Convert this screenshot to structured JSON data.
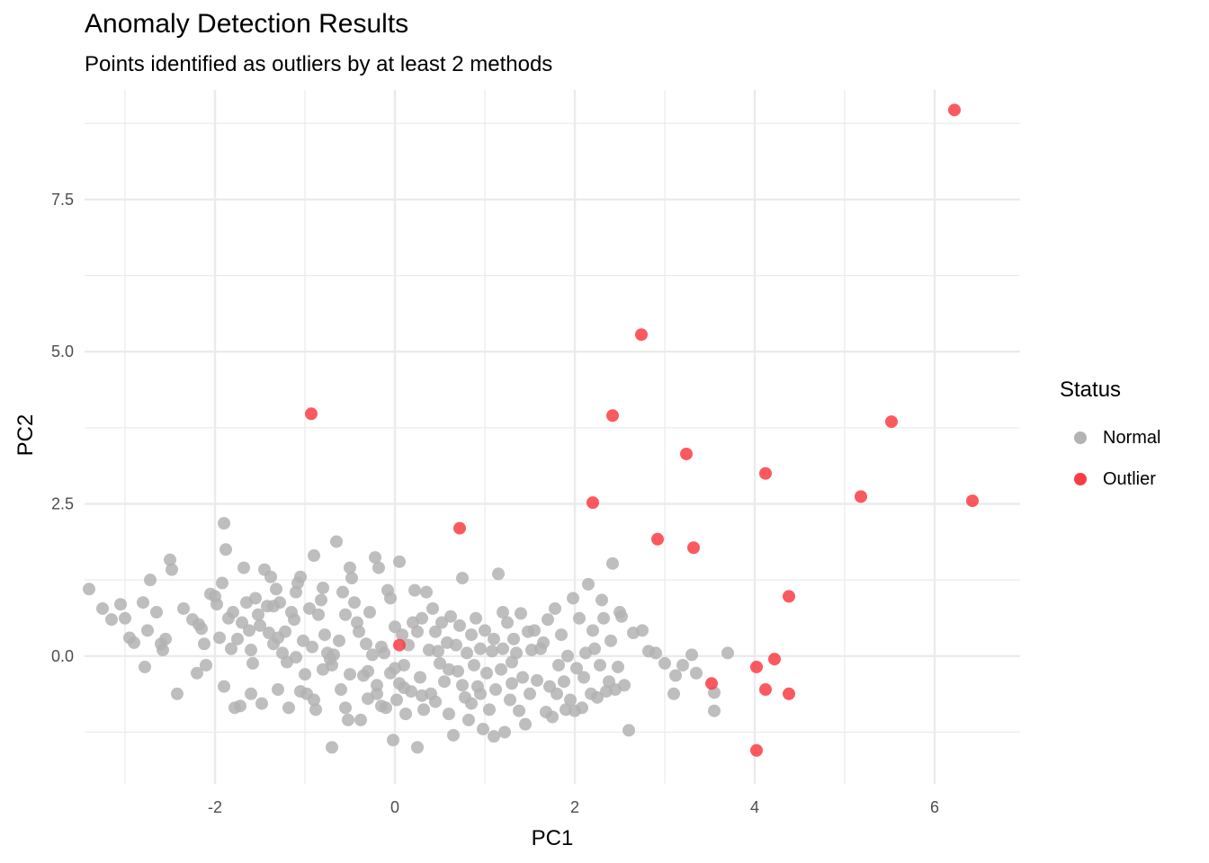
{
  "chart_data": {
    "type": "scatter",
    "title": "Anomaly Detection Results",
    "subtitle": "Points identified as outliers by at least 2 methods",
    "xlabel": "PC1",
    "ylabel": "PC2",
    "xlim": [
      -3.45,
      6.95
    ],
    "ylim": [
      -2.1,
      9.3
    ],
    "x_ticks": [
      -2,
      0,
      2,
      4,
      6
    ],
    "x_tick_labels": [
      "-2",
      "0",
      "2",
      "4",
      "6"
    ],
    "y_ticks": [
      0,
      2.5,
      5,
      7.5
    ],
    "y_tick_labels": [
      "0.0",
      "2.5",
      "5.0",
      "7.5"
    ],
    "grid": true,
    "legend_position": "right",
    "legend_title": "Status",
    "colors": {
      "Normal": "#b3b3b3",
      "Outlier": "#fa3c44",
      "grid": "#ebebeb"
    },
    "series": [
      {
        "name": "Normal",
        "color": "#b3b3b3",
        "points": [
          [
            -3.4,
            1.1
          ],
          [
            -3.25,
            0.78
          ],
          [
            -3.15,
            0.6
          ],
          [
            -3.05,
            0.85
          ],
          [
            -3.0,
            0.62
          ],
          [
            -2.95,
            0.3
          ],
          [
            -2.9,
            0.22
          ],
          [
            -2.8,
            0.88
          ],
          [
            -2.75,
            0.42
          ],
          [
            -2.78,
            -0.18
          ],
          [
            -2.72,
            1.25
          ],
          [
            -2.65,
            0.72
          ],
          [
            -2.6,
            0.2
          ],
          [
            -2.55,
            0.28
          ],
          [
            -2.58,
            0.1
          ],
          [
            -2.5,
            1.58
          ],
          [
            -2.48,
            1.42
          ],
          [
            -2.42,
            -0.62
          ],
          [
            -2.35,
            0.78
          ],
          [
            -2.25,
            0.6
          ],
          [
            -2.2,
            -0.28
          ],
          [
            -2.18,
            0.52
          ],
          [
            -2.15,
            0.45
          ],
          [
            -2.12,
            0.2
          ],
          [
            -2.1,
            -0.15
          ],
          [
            -2.05,
            1.02
          ],
          [
            -2.0,
            0.98
          ],
          [
            -1.98,
            0.85
          ],
          [
            -1.95,
            0.3
          ],
          [
            -1.92,
            1.2
          ],
          [
            -1.9,
            2.18
          ],
          [
            -1.88,
            1.75
          ],
          [
            -1.85,
            0.62
          ],
          [
            -1.82,
            0.12
          ],
          [
            -1.8,
            0.72
          ],
          [
            -1.78,
            -0.85
          ],
          [
            -1.75,
            0.28
          ],
          [
            -1.72,
            -0.82
          ],
          [
            -1.7,
            0.55
          ],
          [
            -1.68,
            1.45
          ],
          [
            -1.65,
            0.88
          ],
          [
            -1.62,
            0.42
          ],
          [
            -1.6,
            0.1
          ],
          [
            -1.58,
            -0.12
          ],
          [
            -1.55,
            0.95
          ],
          [
            -1.52,
            0.68
          ],
          [
            -1.5,
            0.5
          ],
          [
            -1.48,
            -0.78
          ],
          [
            -1.45,
            1.42
          ],
          [
            -1.42,
            0.82
          ],
          [
            -1.4,
            0.38
          ],
          [
            -1.38,
            1.3
          ],
          [
            -1.35,
            0.2
          ],
          [
            -1.32,
            1.1
          ],
          [
            -1.3,
            -0.55
          ],
          [
            -1.28,
            0.88
          ],
          [
            -1.25,
            0.05
          ],
          [
            -1.22,
            0.4
          ],
          [
            -1.2,
            -0.1
          ],
          [
            -1.18,
            -0.85
          ],
          [
            -1.15,
            0.72
          ],
          [
            -1.12,
            0.6
          ],
          [
            -1.1,
            1.05
          ],
          [
            -1.08,
            1.2
          ],
          [
            -1.05,
            1.3
          ],
          [
            -1.02,
            0.25
          ],
          [
            -1.0,
            -0.3
          ],
          [
            -0.98,
            -0.62
          ],
          [
            -0.95,
            0.78
          ],
          [
            -0.92,
            0.15
          ],
          [
            -0.9,
            1.65
          ],
          [
            -0.88,
            -0.88
          ],
          [
            -0.85,
            0.68
          ],
          [
            -0.82,
            0.92
          ],
          [
            -0.8,
            1.12
          ],
          [
            -0.78,
            0.35
          ],
          [
            -0.75,
            0.05
          ],
          [
            -0.72,
            -0.05
          ],
          [
            -0.7,
            -0.15
          ],
          [
            -0.68,
            0.02
          ],
          [
            -0.65,
            1.88
          ],
          [
            -0.62,
            0.25
          ],
          [
            -0.6,
            -0.55
          ],
          [
            -0.58,
            1.05
          ],
          [
            -0.55,
            0.68
          ],
          [
            -0.52,
            -1.05
          ],
          [
            -0.5,
            1.45
          ],
          [
            -0.48,
            1.28
          ],
          [
            -0.45,
            0.88
          ],
          [
            -0.42,
            0.55
          ],
          [
            -0.4,
            0.4
          ],
          [
            -0.38,
            -1.05
          ],
          [
            -0.35,
            -0.32
          ],
          [
            -0.32,
            0.2
          ],
          [
            -0.3,
            -0.25
          ],
          [
            -0.28,
            0.72
          ],
          [
            -0.25,
            0.02
          ],
          [
            -0.22,
            1.62
          ],
          [
            -0.2,
            -0.62
          ],
          [
            -0.18,
            1.45
          ],
          [
            -0.15,
            0.15
          ],
          [
            -0.12,
            0.05
          ],
          [
            -0.1,
            -0.85
          ],
          [
            -0.08,
            1.08
          ],
          [
            -0.05,
            0.95
          ],
          [
            -0.02,
            -1.38
          ],
          [
            0.0,
            0.48
          ],
          [
            0.02,
            -0.72
          ],
          [
            0.05,
            1.55
          ],
          [
            0.08,
            0.35
          ],
          [
            0.1,
            -0.15
          ],
          [
            0.12,
            -0.95
          ],
          [
            0.15,
            0.18
          ],
          [
            0.18,
            -0.58
          ],
          [
            0.2,
            0.55
          ],
          [
            0.22,
            1.08
          ],
          [
            0.25,
            0.4
          ],
          [
            0.28,
            -0.35
          ],
          [
            0.3,
            0.62
          ],
          [
            0.32,
            -0.88
          ],
          [
            0.35,
            1.05
          ],
          [
            0.38,
            0.1
          ],
          [
            0.4,
            -0.62
          ],
          [
            0.42,
            0.78
          ],
          [
            0.45,
            0.4
          ],
          [
            0.48,
            0.08
          ],
          [
            0.5,
            -0.12
          ],
          [
            0.52,
            0.55
          ],
          [
            0.55,
            -0.42
          ],
          [
            0.58,
            0.22
          ],
          [
            0.6,
            -0.95
          ],
          [
            0.62,
            0.65
          ],
          [
            0.65,
            -1.3
          ],
          [
            0.68,
            0.18
          ],
          [
            0.7,
            -0.25
          ],
          [
            0.72,
            0.5
          ],
          [
            0.75,
            1.28
          ],
          [
            0.78,
            -0.68
          ],
          [
            0.8,
            0.05
          ],
          [
            0.82,
            -1.05
          ],
          [
            0.85,
            0.35
          ],
          [
            0.88,
            -0.15
          ],
          [
            0.9,
            0.62
          ],
          [
            0.92,
            -0.5
          ],
          [
            0.95,
            0.12
          ],
          [
            0.98,
            -1.2
          ],
          [
            1.0,
            0.42
          ],
          [
            1.02,
            -0.28
          ],
          [
            1.05,
            -0.88
          ],
          [
            1.08,
            0.08
          ],
          [
            1.1,
            0.28
          ],
          [
            1.12,
            -0.55
          ],
          [
            1.15,
            1.35
          ],
          [
            1.18,
            -0.22
          ],
          [
            1.2,
            0.12
          ],
          [
            1.22,
            -1.25
          ],
          [
            1.25,
            0.55
          ],
          [
            1.28,
            -0.72
          ],
          [
            1.3,
            -0.45
          ],
          [
            1.32,
            0.28
          ],
          [
            1.35,
            0.05
          ],
          [
            1.38,
            -0.9
          ],
          [
            1.4,
            0.7
          ],
          [
            1.42,
            -0.35
          ],
          [
            1.45,
            -1.12
          ],
          [
            1.48,
            0.4
          ],
          [
            1.5,
            -0.62
          ],
          [
            1.52,
            0.1
          ],
          [
            1.55,
            0.42
          ],
          [
            1.58,
            -0.4
          ],
          [
            -1.9,
            -0.5
          ],
          [
            -1.6,
            -0.62
          ],
          [
            -1.35,
            0.82
          ],
          [
            -1.05,
            -0.58
          ],
          [
            -0.9,
            -0.72
          ],
          [
            -0.7,
            -1.5
          ],
          [
            -0.55,
            -0.85
          ],
          [
            -0.3,
            -0.7
          ],
          [
            -0.15,
            -0.82
          ],
          [
            0.05,
            -0.45
          ],
          [
            0.25,
            -1.5
          ],
          [
            0.45,
            -0.75
          ],
          [
            0.6,
            -0.22
          ],
          [
            0.75,
            -0.48
          ],
          [
            0.85,
            -0.78
          ],
          [
            0.95,
            -0.62
          ],
          [
            1.1,
            -1.32
          ],
          [
            1.2,
            0.72
          ],
          [
            1.3,
            -0.1
          ],
          [
            0.0,
            -0.2
          ],
          [
            1.62,
            0.12
          ],
          [
            1.65,
            0.22
          ],
          [
            1.68,
            -0.92
          ],
          [
            1.7,
            0.6
          ],
          [
            1.72,
            -0.5
          ],
          [
            1.75,
            -1.0
          ],
          [
            1.78,
            0.78
          ],
          [
            1.8,
            -0.62
          ],
          [
            1.82,
            -0.15
          ],
          [
            1.85,
            0.35
          ],
          [
            1.88,
            -0.42
          ],
          [
            1.9,
            -0.88
          ],
          [
            1.92,
            0.0
          ],
          [
            1.95,
            -0.72
          ],
          [
            1.98,
            0.95
          ],
          [
            2.0,
            -0.9
          ],
          [
            2.02,
            -0.2
          ],
          [
            2.05,
            0.62
          ],
          [
            2.08,
            -0.85
          ],
          [
            2.1,
            -0.35
          ],
          [
            2.12,
            0.05
          ],
          [
            2.15,
            1.18
          ],
          [
            2.18,
            -0.62
          ],
          [
            2.2,
            0.42
          ],
          [
            2.22,
            0.12
          ],
          [
            2.25,
            -0.68
          ],
          [
            2.28,
            -0.15
          ],
          [
            2.3,
            0.92
          ],
          [
            2.32,
            0.62
          ],
          [
            2.35,
            -0.58
          ],
          [
            2.38,
            -0.42
          ],
          [
            2.4,
            0.25
          ],
          [
            2.42,
            1.52
          ],
          [
            2.45,
            -0.55
          ],
          [
            2.48,
            -0.18
          ],
          [
            2.5,
            0.72
          ],
          [
            2.52,
            0.65
          ],
          [
            2.55,
            -0.48
          ],
          [
            2.6,
            -1.22
          ],
          [
            2.65,
            0.38
          ],
          [
            2.75,
            0.42
          ],
          [
            2.82,
            0.08
          ],
          [
            2.9,
            0.05
          ],
          [
            3.0,
            -0.12
          ],
          [
            3.1,
            -0.62
          ],
          [
            3.12,
            -0.32
          ],
          [
            3.2,
            -0.15
          ],
          [
            3.3,
            0.02
          ],
          [
            3.35,
            -0.28
          ],
          [
            3.55,
            -0.6
          ],
          [
            3.55,
            -0.9
          ],
          [
            3.7,
            0.05
          ],
          [
            -0.05,
            -0.28
          ],
          [
            0.1,
            -0.52
          ],
          [
            0.3,
            -0.65
          ],
          [
            -0.2,
            -0.48
          ],
          [
            -0.5,
            -0.3
          ],
          [
            -0.8,
            -0.22
          ],
          [
            -1.1,
            -0.02
          ],
          [
            -1.3,
            0.3
          ]
        ]
      },
      {
        "name": "Outlier",
        "color": "#fa3c44",
        "points": [
          [
            6.22,
            8.97
          ],
          [
            2.74,
            5.28
          ],
          [
            -0.93,
            3.98
          ],
          [
            2.42,
            3.95
          ],
          [
            5.52,
            3.85
          ],
          [
            3.24,
            3.32
          ],
          [
            4.12,
            3.0
          ],
          [
            5.18,
            2.62
          ],
          [
            6.42,
            2.55
          ],
          [
            2.2,
            2.52
          ],
          [
            0.72,
            2.1
          ],
          [
            2.92,
            1.92
          ],
          [
            3.32,
            1.78
          ],
          [
            4.38,
            0.98
          ],
          [
            0.05,
            0.18
          ],
          [
            4.22,
            -0.05
          ],
          [
            4.02,
            -0.18
          ],
          [
            3.52,
            -0.45
          ],
          [
            4.12,
            -0.55
          ],
          [
            4.38,
            -0.62
          ],
          [
            4.02,
            -1.55
          ]
        ]
      }
    ]
  }
}
